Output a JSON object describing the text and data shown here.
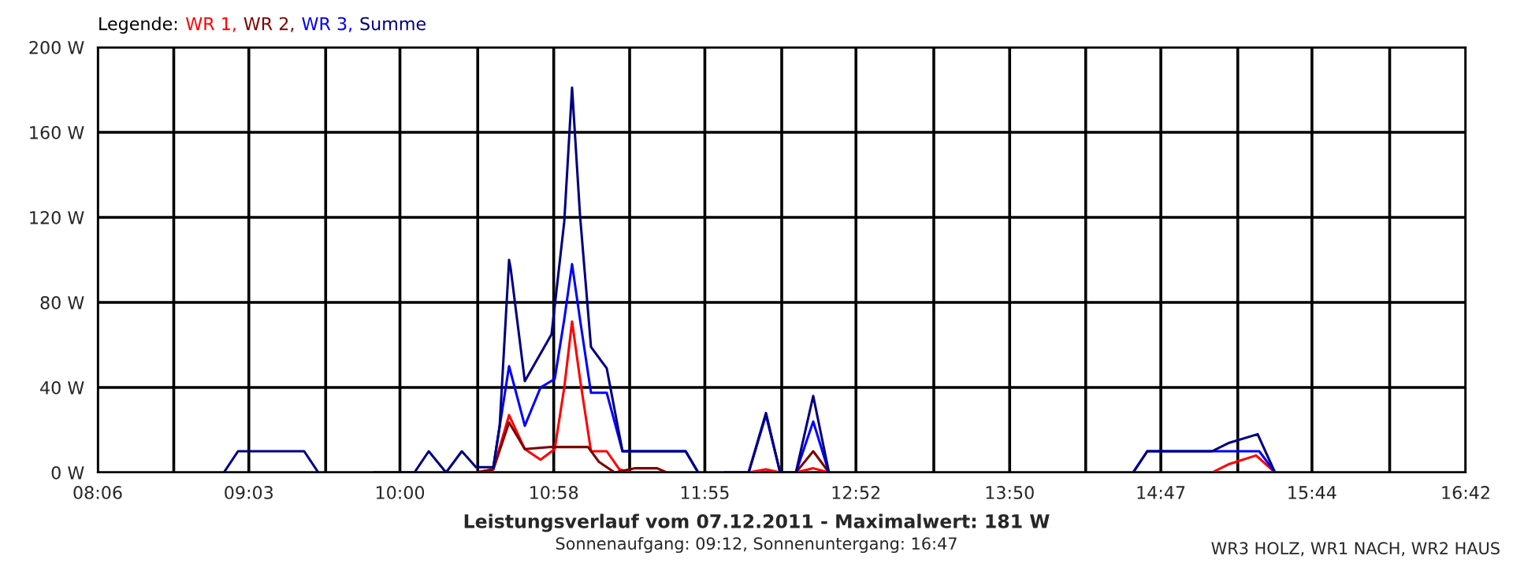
{
  "chart_data": {
    "type": "line",
    "title": "Leistungsverlauf vom 07.12.2011 - Maximalwert: 181 W",
    "subtitle": "Sonnenaufgang: 09:12, Sonnenuntergang: 16:47",
    "annotations": [
      "WR3 HOLZ, WR1 NACH, WR2 HAUS"
    ],
    "legend_title": "Legende:",
    "legend": "top left",
    "grid": true,
    "marker": "none",
    "line_style": "solid",
    "xlim": [
      8.1,
      16.7
    ],
    "xticks": [
      {
        "value": 8.1,
        "label": "08:06"
      },
      {
        "value": 8.578,
        "label": null
      },
      {
        "value": 9.05,
        "label": "09:03"
      },
      {
        "value": 9.533,
        "label": null
      },
      {
        "value": 10,
        "label": "10:00"
      },
      {
        "value": 10.489,
        "label": null
      },
      {
        "value": 10.9667,
        "label": "10:58"
      },
      {
        "value": 11.444,
        "label": null
      },
      {
        "value": 11.9167,
        "label": "11:55"
      },
      {
        "value": 12.4,
        "label": null
      },
      {
        "value": 12.8667,
        "label": "12:52"
      },
      {
        "value": 13.356,
        "label": null
      },
      {
        "value": 13.833,
        "label": "13:50"
      },
      {
        "value": 14.311,
        "label": null
      },
      {
        "value": 14.7833,
        "label": "14:47"
      },
      {
        "value": 15.267,
        "label": null
      },
      {
        "value": 15.7333,
        "label": "15:44"
      },
      {
        "value": 16.222,
        "label": null
      },
      {
        "value": 16.7,
        "label": "16:42"
      }
    ],
    "ylim": [
      0,
      200
    ],
    "yticks": [
      {
        "value": 0,
        "label": "0 W"
      },
      {
        "value": 40,
        "label": "40 W"
      },
      {
        "value": 80,
        "label": "80 W"
      },
      {
        "value": 120,
        "label": "120 W"
      },
      {
        "value": 160,
        "label": "160 W"
      },
      {
        "value": 200,
        "label": "200 W"
      }
    ],
    "series": [
      {
        "name": "WR 1,",
        "color": "#ff0000",
        "x": [
          10.478,
          10.587,
          10.686,
          10.785,
          10.884,
          10.973,
          11.033,
          11.082,
          11.132,
          11.201,
          11.3,
          11.379,
          11.45,
          11.95,
          12.192,
          12.301,
          12.39,
          12.489,
          12.598,
          12.697,
          13.5,
          15.105,
          15.214,
          15.382,
          15.501
        ],
        "values": [
          0,
          1.5,
          27,
          11,
          6,
          11,
          40,
          71,
          44,
          10,
          10,
          1.5,
          0,
          null,
          0,
          1.5,
          0,
          0,
          2,
          0,
          null,
          0,
          4,
          8,
          0
        ]
      },
      {
        "name": "WR 2,",
        "color": "#800000",
        "x": [
          9.834,
          10.091,
          10.2,
          10.478,
          10.587,
          10.686,
          10.785,
          10.953,
          11.182,
          11.251,
          11.35,
          11.479,
          11.617,
          11.677,
          11.95,
          12.489,
          12.598,
          12.697
        ],
        "values": [
          0,
          0,
          null,
          0,
          1.5,
          23.5,
          11,
          12,
          12,
          5,
          0,
          2,
          2,
          0,
          null,
          0,
          10,
          0
        ]
      },
      {
        "name": "WR 3,",
        "color": "#0000ff",
        "x": [
          10.587,
          10.686,
          10.785,
          10.884,
          10.973,
          11.033,
          11.082,
          11.132,
          11.201,
          11.3,
          11.399,
          11.796,
          11.875,
          11.95,
          12.043,
          12.192,
          12.301,
          12.39,
          12.489,
          12.598,
          12.697,
          13.5,
          14.609,
          14.698,
          15.402,
          15.501
        ],
        "values": [
          2.5,
          50,
          22,
          40,
          44,
          72,
          98,
          72,
          37.5,
          37.5,
          10,
          10,
          0,
          null,
          0,
          0,
          27,
          0,
          0,
          24,
          0,
          null,
          0,
          10,
          10,
          0
        ]
      },
      {
        "name": "Summe",
        "color": "#000080",
        "x": [
          8.893,
          8.982,
          9.398,
          9.487,
          9.6,
          9.834,
          10.091,
          10.181,
          10.29,
          10.389,
          10.478,
          10.587,
          10.627,
          10.686,
          10.696,
          10.785,
          10.953,
          11.033,
          11.082,
          11.132,
          11.201,
          11.3,
          11.399,
          11.796,
          11.875,
          11.95,
          12.043,
          12.192,
          12.301,
          12.39,
          12.489,
          12.598,
          12.697,
          13.5,
          14.609,
          14.698,
          15.105,
          15.214,
          15.392,
          15.501
        ],
        "values": [
          0,
          10,
          10,
          0,
          null,
          0,
          0,
          10,
          0,
          10,
          2.5,
          2.5,
          22,
          100,
          96,
          43,
          65,
          118,
          181,
          121,
          59,
          49,
          10,
          10,
          0,
          null,
          0,
          0,
          28,
          0,
          0,
          36,
          0,
          null,
          0,
          10,
          10,
          14,
          18,
          0
        ]
      }
    ]
  }
}
